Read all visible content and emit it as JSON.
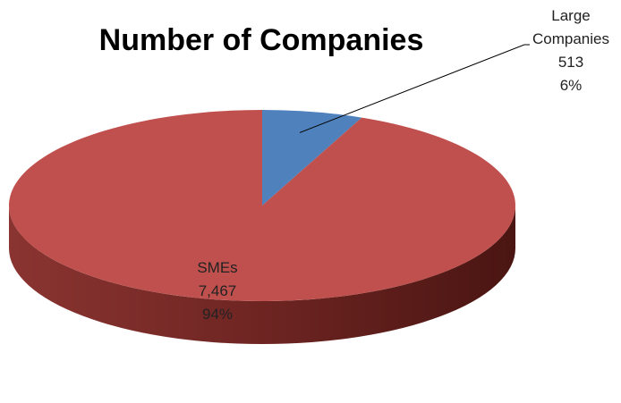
{
  "chart_data": {
    "type": "pie",
    "three_d": true,
    "title": "Number of Companies",
    "categories": [
      "Large Companies",
      "SMEs"
    ],
    "values": [
      513,
      7467
    ],
    "percentages": [
      "6%",
      "94%"
    ],
    "value_labels": [
      "513",
      "7,467"
    ],
    "label_lines": [
      [
        "Large",
        "Companies",
        "513",
        "6%"
      ],
      [
        "SMEs",
        "7,467",
        "94%"
      ]
    ],
    "colors": [
      "#4f81bd",
      "#c0504d"
    ],
    "dark_colors": [
      "#2a4d7c",
      "#4a1512"
    ],
    "side_colors": [
      "#38629a",
      "#8a3431"
    ],
    "legend": "none",
    "leader_line_for": "Large Companies"
  }
}
